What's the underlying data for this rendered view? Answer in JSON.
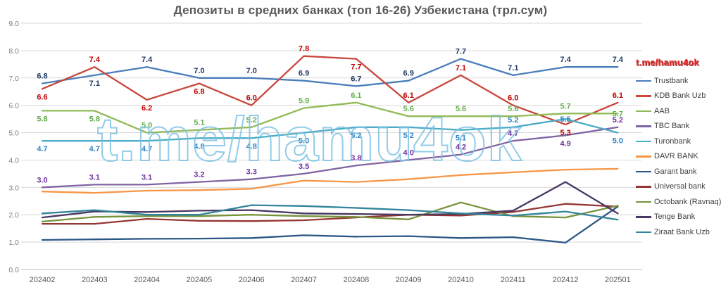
{
  "watermark": {
    "big": "t.me/hamu4ok",
    "small": "t.me/hamu4ok",
    "big_stroke_color": "#7FC2E4",
    "small_color": "#E12B2B"
  },
  "axes": {
    "y_ticks": [
      "0.0",
      "1.0",
      "2.0",
      "3.0",
      "4.0",
      "5.0",
      "6.0",
      "7.0",
      "8.0",
      "9.0"
    ],
    "grid_color": "#D9D9D9",
    "axis_line_color": "#BFBFBF",
    "y_tick_color": "#808080",
    "x_tick_color": "#595959"
  },
  "chart_data": {
    "type": "line",
    "title": "Депозиты в средних банках (топ 16-26) Узбекистана (трл.сум)",
    "xlabel": "",
    "ylabel": "",
    "ylim": [
      0,
      9
    ],
    "grid": true,
    "legend_position": "right",
    "categories": [
      "202402",
      "202403",
      "202404",
      "202405",
      "202406",
      "202407",
      "202408",
      "202409",
      "202410",
      "202411",
      "202412",
      "202501"
    ],
    "series": [
      {
        "name": "Trustbank",
        "color": "#4A7EBB",
        "label_color": "#1F3864",
        "values": [
          6.8,
          7.1,
          7.4,
          7.0,
          7.0,
          6.9,
          6.7,
          6.9,
          7.7,
          7.1,
          7.4,
          7.4
        ],
        "label_pos": [
          "a",
          "b",
          "a",
          "a",
          "a",
          "a",
          "a",
          "a",
          "a",
          "a",
          "a",
          "a"
        ]
      },
      {
        "name": "KDB Bank Uzb",
        "color": "#C8463C",
        "label_color": "#C00000",
        "values": [
          6.6,
          7.4,
          6.2,
          6.8,
          6.0,
          7.8,
          7.7,
          6.1,
          7.1,
          6.0,
          5.3,
          6.1
        ],
        "label_pos": [
          "b",
          "a",
          "b",
          "b",
          "a",
          "a",
          "b",
          "a",
          "a",
          "a",
          "b",
          "a"
        ]
      },
      {
        "name": "AAB",
        "color": "#92BA56",
        "label_color": "#62AE4A",
        "values": [
          5.8,
          5.8,
          5.0,
          5.1,
          5.2,
          5.9,
          6.1,
          5.6,
          5.6,
          5.6,
          5.7,
          5.7
        ],
        "label_pos": [
          "b",
          "b",
          "a",
          "a",
          "a",
          "a",
          "a",
          "a",
          "a",
          "a",
          "a",
          "m"
        ]
      },
      {
        "name": "TBC Bank",
        "color": "#8064A2",
        "label_color": "#7030A0",
        "values": [
          3.0,
          3.1,
          3.1,
          3.2,
          3.3,
          3.5,
          3.8,
          4.0,
          4.2,
          4.7,
          4.9,
          5.2
        ],
        "label_pos": [
          "a",
          "a",
          "a",
          "a",
          "a",
          "a",
          "a",
          "a",
          "a",
          "a",
          "b",
          "a"
        ]
      },
      {
        "name": "Turonbank",
        "color": "#4BACC6",
        "label_color": "#3585C5",
        "values": [
          4.7,
          4.7,
          4.7,
          4.8,
          4.8,
          5.0,
          5.2,
          5.2,
          5.1,
          5.2,
          5.5,
          5.0
        ],
        "label_pos": [
          "b",
          "b",
          "b",
          "b",
          "b",
          "b",
          "b",
          "b",
          "b",
          "a",
          "m",
          "b"
        ]
      },
      {
        "name": "DAVR BANK",
        "color": "#F79646",
        "label_color": "#E36C0A",
        "values": [
          2.85,
          2.8,
          2.88,
          2.9,
          2.95,
          3.25,
          3.2,
          3.3,
          3.45,
          3.55,
          3.65,
          3.68
        ],
        "label_pos": null
      },
      {
        "name": "Garant bank",
        "color": "#2A5784",
        "label_color": "#2A5784",
        "values": [
          1.08,
          1.1,
          1.12,
          1.13,
          1.15,
          1.25,
          1.2,
          1.22,
          1.15,
          1.18,
          0.98,
          2.3
        ],
        "label_pos": null
      },
      {
        "name": "Universal bank",
        "color": "#943634",
        "label_color": "#943634",
        "values": [
          1.67,
          1.67,
          1.85,
          1.78,
          1.77,
          1.8,
          1.9,
          2.0,
          1.97,
          2.1,
          2.4,
          2.3
        ],
        "label_pos": null
      },
      {
        "name": "Octobank (Ravnaq)",
        "color": "#77933C",
        "label_color": "#77933C",
        "values": [
          1.75,
          1.92,
          1.95,
          1.95,
          2.0,
          1.95,
          1.92,
          1.83,
          2.45,
          1.95,
          1.9,
          2.33
        ],
        "label_pos": null
      },
      {
        "name": "Tenge Bank",
        "color": "#473761",
        "label_color": "#473761",
        "values": [
          1.9,
          2.12,
          2.1,
          2.15,
          2.17,
          2.05,
          2.03,
          2.0,
          2.03,
          2.15,
          3.2,
          2.05
        ],
        "label_pos": null
      },
      {
        "name": "Ziraat Bank Uzb",
        "color": "#31849B",
        "label_color": "#31849B",
        "values": [
          2.05,
          2.17,
          2.0,
          2.0,
          2.35,
          2.32,
          2.25,
          2.17,
          2.05,
          1.97,
          2.12,
          1.82
        ],
        "label_pos": null
      }
    ]
  }
}
